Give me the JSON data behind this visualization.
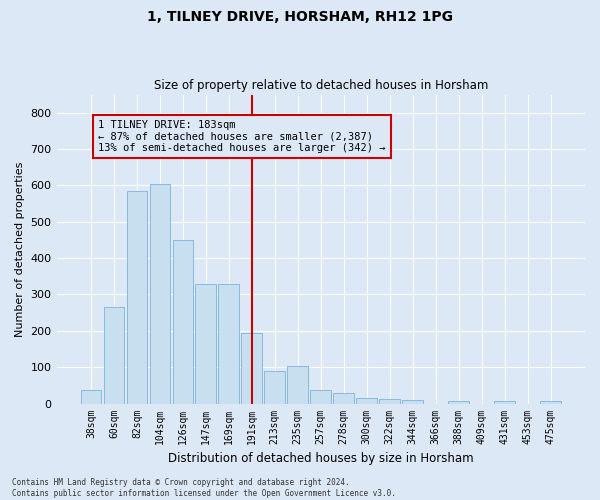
{
  "title": "1, TILNEY DRIVE, HORSHAM, RH12 1PG",
  "subtitle": "Size of property relative to detached houses in Horsham",
  "xlabel": "Distribution of detached houses by size in Horsham",
  "ylabel": "Number of detached properties",
  "footnote": "Contains HM Land Registry data © Crown copyright and database right 2024.\nContains public sector information licensed under the Open Government Licence v3.0.",
  "categories": [
    "38sqm",
    "60sqm",
    "82sqm",
    "104sqm",
    "126sqm",
    "147sqm",
    "169sqm",
    "191sqm",
    "213sqm",
    "235sqm",
    "257sqm",
    "278sqm",
    "300sqm",
    "322sqm",
    "344sqm",
    "366sqm",
    "388sqm",
    "409sqm",
    "431sqm",
    "453sqm",
    "475sqm"
  ],
  "values": [
    37,
    265,
    585,
    605,
    450,
    328,
    328,
    195,
    90,
    103,
    38,
    30,
    15,
    12,
    10,
    0,
    7,
    0,
    7,
    0,
    7
  ],
  "bar_color": "#c8dff0",
  "bar_edge_color": "#7ab4d8",
  "vline_x": 7.5,
  "vline_color": "#cc0000",
  "annotation_text": "1 TILNEY DRIVE: 183sqm\n← 87% of detached houses are smaller (2,387)\n13% of semi-detached houses are larger (342) →",
  "annotation_box_color": "#cc0000",
  "ylim": [
    0,
    850
  ],
  "yticks": [
    0,
    100,
    200,
    300,
    400,
    500,
    600,
    700,
    800
  ],
  "background_color": "#dce8f5",
  "grid_color": "white"
}
